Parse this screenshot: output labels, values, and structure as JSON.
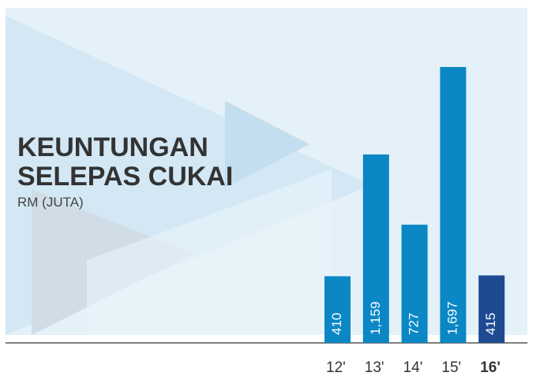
{
  "chart_data": {
    "type": "bar",
    "title_lines": [
      "KEUNTUNGAN",
      "SELEPAS CUKAI"
    ],
    "subtitle": "RM (JUTA)",
    "categories": [
      "12'",
      "13'",
      "14'",
      "15'",
      "16'"
    ],
    "values": [
      410,
      1159,
      727,
      1697,
      415
    ],
    "value_labels": [
      "410",
      "1,159",
      "727",
      "1,697",
      "415"
    ],
    "colors": [
      "#0a87c4",
      "#0a87c4",
      "#0a87c4",
      "#0a87c4",
      "#1e4a92"
    ],
    "highlight": 4
  }
}
